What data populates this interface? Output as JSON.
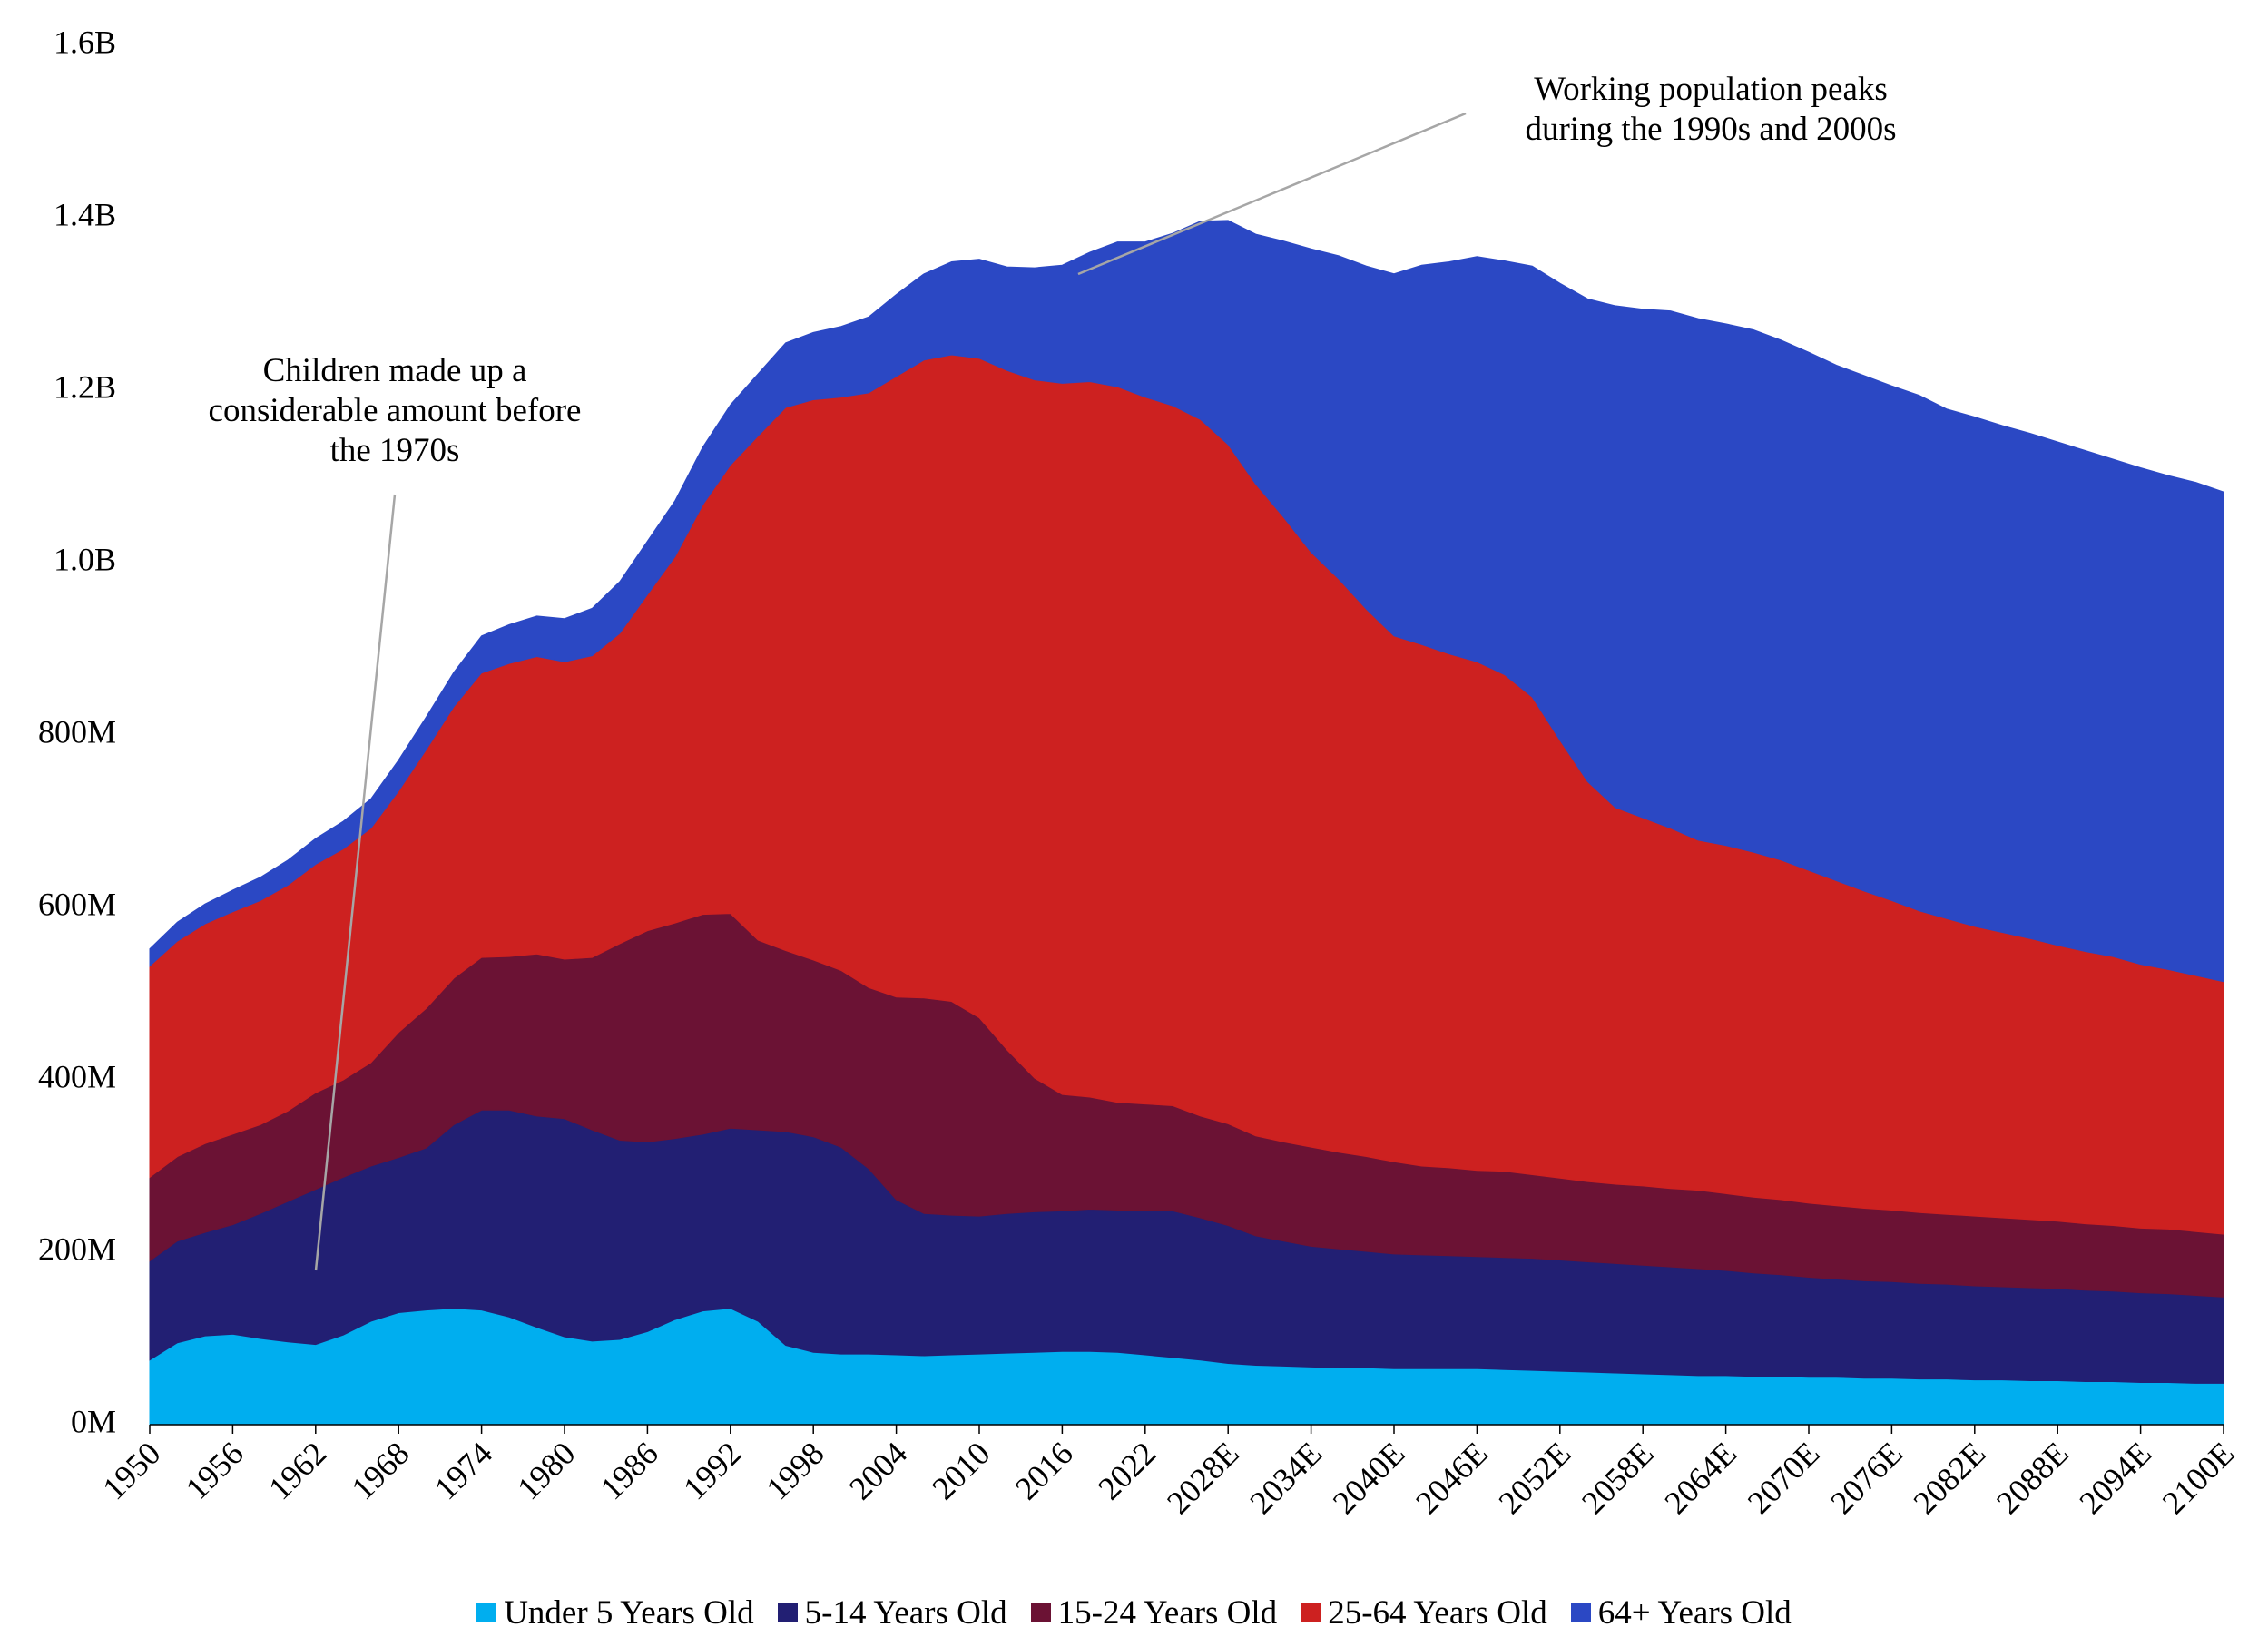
{
  "chart_data": {
    "type": "area",
    "stacked": true,
    "x": [
      "1950",
      "1952",
      "1954",
      "1956",
      "1958",
      "1960",
      "1962",
      "1964",
      "1966",
      "1968",
      "1970",
      "1972",
      "1974",
      "1976",
      "1978",
      "1980",
      "1982",
      "1984",
      "1986",
      "1988",
      "1990",
      "1992",
      "1994",
      "1996",
      "1998",
      "2000",
      "2002",
      "2004",
      "2006",
      "2008",
      "2010",
      "2012",
      "2014",
      "2016",
      "2018",
      "2020",
      "2022",
      "2024",
      "2026",
      "2028E",
      "2030E",
      "2032E",
      "2034E",
      "2036E",
      "2038E",
      "2040E",
      "2042E",
      "2044E",
      "2046E",
      "2048E",
      "2050E",
      "2052E",
      "2054E",
      "2056E",
      "2058E",
      "2060E",
      "2062E",
      "2064E",
      "2066E",
      "2068E",
      "2070E",
      "2072E",
      "2074E",
      "2076E",
      "2078E",
      "2080E",
      "2082E",
      "2084E",
      "2086E",
      "2088E",
      "2090E",
      "2092E",
      "2094E",
      "2096E",
      "2098E",
      "2100E"
    ],
    "x_tick_labels": [
      "1950",
      "1956",
      "1962",
      "1968",
      "1974",
      "1980",
      "1986",
      "1992",
      "1998",
      "2004",
      "2010",
      "2016",
      "2022",
      "2028E",
      "2034E",
      "2040E",
      "2046E",
      "2052E",
      "2058E",
      "2064E",
      "2070E",
      "2076E",
      "2082E",
      "2088E",
      "2094E",
      "2100E"
    ],
    "y_tick_labels": [
      "0M",
      "200M",
      "400M",
      "600M",
      "800M",
      "1.0B",
      "1.2B",
      "1.4B",
      "1.6B"
    ],
    "y_ticks": [
      0,
      200,
      400,
      600,
      800,
      1000,
      1200,
      1400,
      1600
    ],
    "ylim": [
      0,
      1600
    ],
    "y_unit": "millions",
    "grid": false,
    "legend_position": "bottom",
    "series": [
      {
        "name": "Under 5 Years Old",
        "color": "#00AEEF",
        "values": [
          75,
          95,
          103,
          105,
          100,
          96,
          93,
          104,
          120,
          130,
          133,
          135,
          133,
          125,
          113,
          102,
          97,
          99,
          108,
          122,
          132,
          135,
          120,
          92,
          84,
          82,
          82,
          81,
          80,
          81,
          82,
          83,
          84,
          85,
          85,
          84,
          81,
          78,
          75,
          71,
          69,
          68,
          67,
          66,
          66,
          65,
          65,
          65,
          65,
          64,
          63,
          62,
          61,
          60,
          59,
          58,
          57,
          57,
          56,
          56,
          55,
          55,
          54,
          54,
          53,
          53,
          52,
          52,
          51,
          51,
          50,
          50,
          49,
          49,
          48,
          48
        ]
      },
      {
        "name": "5-14 Years Old",
        "color": "#221F73",
        "values": [
          115,
          118,
          120,
          127,
          145,
          163,
          180,
          183,
          180,
          180,
          188,
          213,
          232,
          240,
          245,
          253,
          245,
          231,
          220,
          210,
          205,
          209,
          222,
          248,
          250,
          240,
          215,
          180,
          165,
          162,
          160,
          162,
          163,
          163,
          165,
          165,
          168,
          170,
          165,
          160,
          150,
          145,
          140,
          138,
          135,
          133,
          132,
          131,
          130,
          130,
          130,
          129,
          128,
          127,
          126,
          125,
          124,
          122,
          120,
          118,
          116,
          114,
          113,
          112,
          111,
          110,
          109,
          108,
          108,
          107,
          106,
          105,
          104,
          103,
          102,
          100
        ]
      },
      {
        "name": "15-24 Years Old",
        "color": "#6B1234",
        "values": [
          97,
          98,
          103,
          105,
          103,
          105,
          112,
          113,
          120,
          145,
          162,
          170,
          177,
          178,
          188,
          185,
          200,
          228,
          245,
          250,
          255,
          249,
          220,
          210,
          205,
          205,
          210,
          235,
          250,
          248,
          230,
          190,
          155,
          135,
          130,
          125,
          123,
          122,
          118,
          118,
          116,
          115,
          115,
          112,
          110,
          107,
          103,
          102,
          100,
          100,
          97,
          95,
          93,
          92,
          92,
          91,
          91,
          89,
          88,
          87,
          86,
          85,
          84,
          83,
          82,
          81,
          81,
          80,
          79,
          78,
          77,
          76,
          75,
          75,
          74,
          73
        ]
      },
      {
        "name": "25-64 Years Old",
        "color": "#CD2120",
        "values": [
          245,
          250,
          255,
          258,
          260,
          262,
          265,
          268,
          272,
          280,
          300,
          315,
          330,
          340,
          345,
          345,
          350,
          360,
          390,
          425,
          475,
          520,
          585,
          630,
          650,
          665,
          690,
          720,
          740,
          750,
          765,
          788,
          810,
          825,
          830,
          830,
          820,
          812,
          808,
          788,
          756,
          725,
          690,
          665,
          635,
          610,
          605,
          596,
          590,
          576,
          554,
          508,
          464,
          437,
          427,
          418,
          406,
          404,
          400,
          394,
          386,
          377,
          368,
          359,
          350,
          343,
          336,
          331,
          326,
          320,
          316,
          312,
          306,
          301,
          297,
          293
        ]
      },
      {
        "name": "64+ Years Old",
        "color": "#2B48C4",
        "values": [
          20,
          22,
          23,
          25,
          27,
          29,
          30,
          32,
          34,
          36,
          38,
          40,
          43,
          45,
          47,
          50,
          55,
          60,
          62,
          65,
          67,
          70,
          72,
          75,
          78,
          82,
          88,
          95,
          100,
          108,
          115,
          120,
          130,
          137,
          150,
          168,
          180,
          200,
          230,
          260,
          290,
          320,
          352,
          375,
          398,
          420,
          440,
          455,
          470,
          480,
          500,
          530,
          560,
          582,
          590,
          600,
          605,
          605,
          606,
          603,
          601,
          598,
          598,
          597,
          598,
          591,
          591,
          588,
          586,
          584,
          581,
          577,
          576,
          573,
          572,
          568
        ]
      }
    ],
    "annotations": [
      {
        "lines": [
          "Working population peaks",
          "during the 1990s and 2000s"
        ]
      },
      {
        "lines": [
          "Children made up a",
          "considerable amount before",
          "the 1970s"
        ]
      }
    ]
  }
}
